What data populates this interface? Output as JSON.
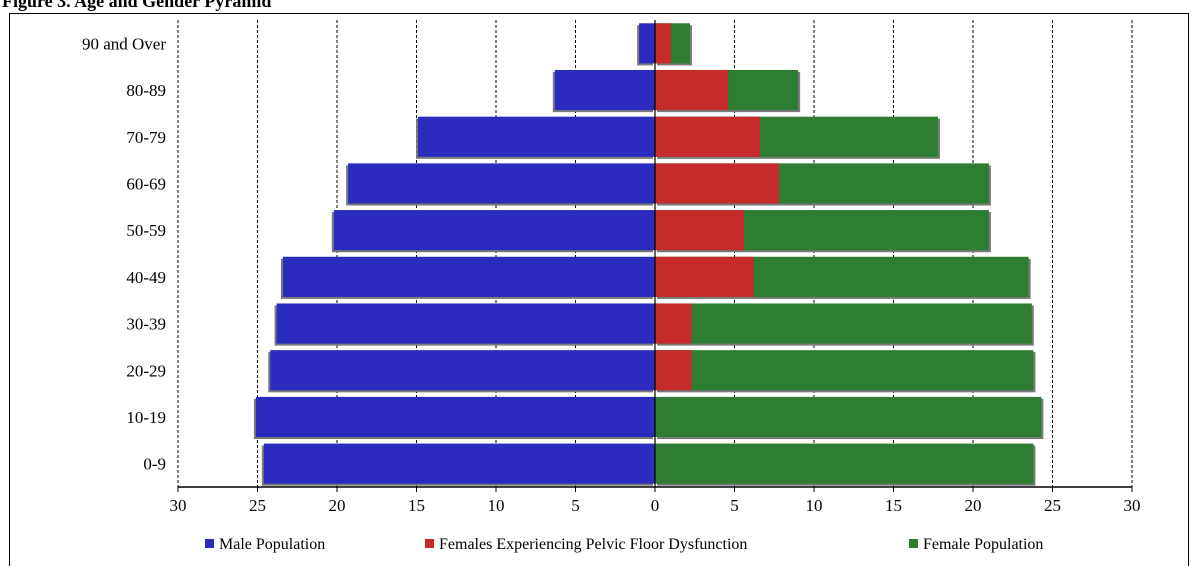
{
  "header": {
    "text": "Figure 3. Age and Gender Pyramid"
  },
  "chart_data": {
    "type": "bar",
    "orientation": "horizontal",
    "layout": "population-pyramid",
    "categories": [
      "90 and Over",
      "80-89",
      "70-79",
      "60-69",
      "50-59",
      "40-49",
      "30-39",
      "20-29",
      "10-19",
      "0-9"
    ],
    "series": [
      {
        "name": "Male Population",
        "side": "left",
        "color": "#2b2bbd",
        "values": [
          1.0,
          6.3,
          14.9,
          19.3,
          20.2,
          23.4,
          23.8,
          24.2,
          25.1,
          24.6
        ]
      },
      {
        "name": "Females Experiencing Pelvic Floor Dysfunction",
        "side": "right",
        "color": "#c52b2b",
        "values": [
          1.0,
          4.6,
          6.6,
          7.8,
          5.6,
          6.2,
          2.3,
          2.3,
          0,
          0
        ]
      },
      {
        "name": "Female Population",
        "side": "right",
        "color": "#2e7d32",
        "values": [
          2.2,
          9.0,
          17.8,
          21.0,
          21.0,
          23.5,
          23.7,
          23.8,
          24.3,
          23.8
        ]
      }
    ],
    "x_ticks": [
      "30",
      "25",
      "20",
      "15",
      "10",
      "5",
      "0",
      "5",
      "10",
      "15",
      "20",
      "25",
      "30"
    ],
    "xlim": [
      -30,
      30
    ],
    "grid": "vertical dashed",
    "legend_position": "bottom"
  }
}
